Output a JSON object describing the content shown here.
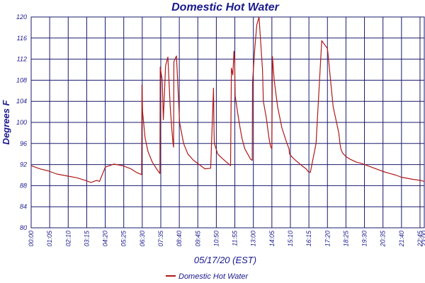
{
  "chart_data": {
    "type": "line",
    "title": "Domestic Hot Water",
    "xlabel": "05/17/20 (EST)",
    "ylabel": "Degrees F",
    "ylim": [
      80,
      120
    ],
    "yticks": [
      80,
      84,
      88,
      92,
      96,
      100,
      104,
      108,
      112,
      116,
      120
    ],
    "xlim": [
      "00:00",
      "23:00"
    ],
    "xtick_labels": [
      "00:00",
      "01:05",
      "02:10",
      "03:15",
      "04:20",
      "05:25",
      "06:30",
      "07:35",
      "08:40",
      "09:45",
      "10:50",
      "11:55",
      "13:00",
      "14:05",
      "15:10",
      "16:15",
      "17:20",
      "18:25",
      "19:30",
      "20:35",
      "21:40",
      "22:45",
      "23:00"
    ],
    "grid": true,
    "legend_position": "bottom",
    "colors": {
      "line": "#b01818",
      "grid": "#1a1a6c",
      "text": "#1a1a8c"
    },
    "series": [
      {
        "name": "Domestic Hot Water",
        "x": [
          "00:00",
          "00:30",
          "01:00",
          "01:30",
          "02:10",
          "02:40",
          "03:10",
          "03:30",
          "03:50",
          "04:00",
          "04:20",
          "04:50",
          "05:20",
          "05:50",
          "06:10",
          "06:28",
          "06:29",
          "06:31",
          "06:40",
          "06:50",
          "07:05",
          "07:20",
          "07:32",
          "07:33",
          "07:40",
          "07:44",
          "07:52",
          "08:00",
          "08:08",
          "08:14",
          "08:18",
          "08:20",
          "08:21",
          "08:30",
          "08:35",
          "08:41",
          "08:55",
          "09:10",
          "09:30",
          "09:50",
          "10:10",
          "10:30",
          "10:40",
          "10:42",
          "10:43",
          "10:55",
          "11:10",
          "11:25",
          "11:40",
          "11:43",
          "11:48",
          "11:52",
          "11:54",
          "11:56",
          "12:10",
          "12:20",
          "12:30",
          "12:40",
          "12:50",
          "12:56",
          "12:57",
          "13:05",
          "13:12",
          "13:20",
          "13:32",
          "13:35",
          "13:45",
          "13:55",
          "14:00",
          "14:05",
          "14:07",
          "14:13",
          "14:25",
          "14:40",
          "14:55",
          "15:05",
          "15:07",
          "15:20",
          "15:35",
          "15:50",
          "16:05",
          "16:12",
          "16:20",
          "16:40",
          "17:00",
          "17:20",
          "17:40",
          "18:00",
          "18:04",
          "18:07",
          "18:13",
          "18:25",
          "18:40",
          "19:00",
          "19:20",
          "19:40",
          "20:00",
          "20:20",
          "20:40",
          "21:00",
          "21:20",
          "21:40",
          "22:00",
          "22:20",
          "22:45",
          "23:00"
        ],
        "y": [
          91.8,
          91.2,
          90.8,
          90.2,
          89.8,
          89.5,
          89.0,
          88.6,
          89.0,
          88.8,
          91.5,
          92.1,
          91.8,
          91.2,
          90.5,
          90.1,
          107.1,
          102.0,
          97.0,
          94.5,
          92.5,
          91.2,
          90.3,
          110.5,
          108.0,
          100.5,
          110.8,
          112.4,
          103.0,
          98.5,
          96.0,
          95.3,
          111.5,
          112.6,
          107.0,
          100.0,
          96.0,
          94.0,
          92.8,
          92.0,
          91.2,
          91.3,
          106.5,
          98.0,
          96.0,
          94.0,
          93.2,
          92.5,
          91.8,
          110.3,
          109.0,
          113.5,
          112.0,
          105.0,
          100.0,
          97.0,
          95.0,
          94.0,
          93.0,
          92.8,
          107.5,
          114.0,
          118.5,
          120.0,
          110.0,
          104.0,
          101.0,
          97.0,
          95.5,
          95.0,
          112.5,
          108.0,
          103.0,
          99.0,
          96.5,
          95.0,
          94.0,
          93.2,
          92.5,
          91.8,
          91.2,
          90.7,
          90.5,
          96.0,
          115.5,
          114.0,
          103.0,
          98.0,
          96.0,
          95.0,
          94.2,
          93.5,
          93.0,
          92.5,
          92.2,
          91.8,
          91.4,
          91.0,
          90.6,
          90.3,
          90.0,
          89.6,
          89.4,
          89.2,
          89.0,
          88.8
        ]
      }
    ]
  }
}
